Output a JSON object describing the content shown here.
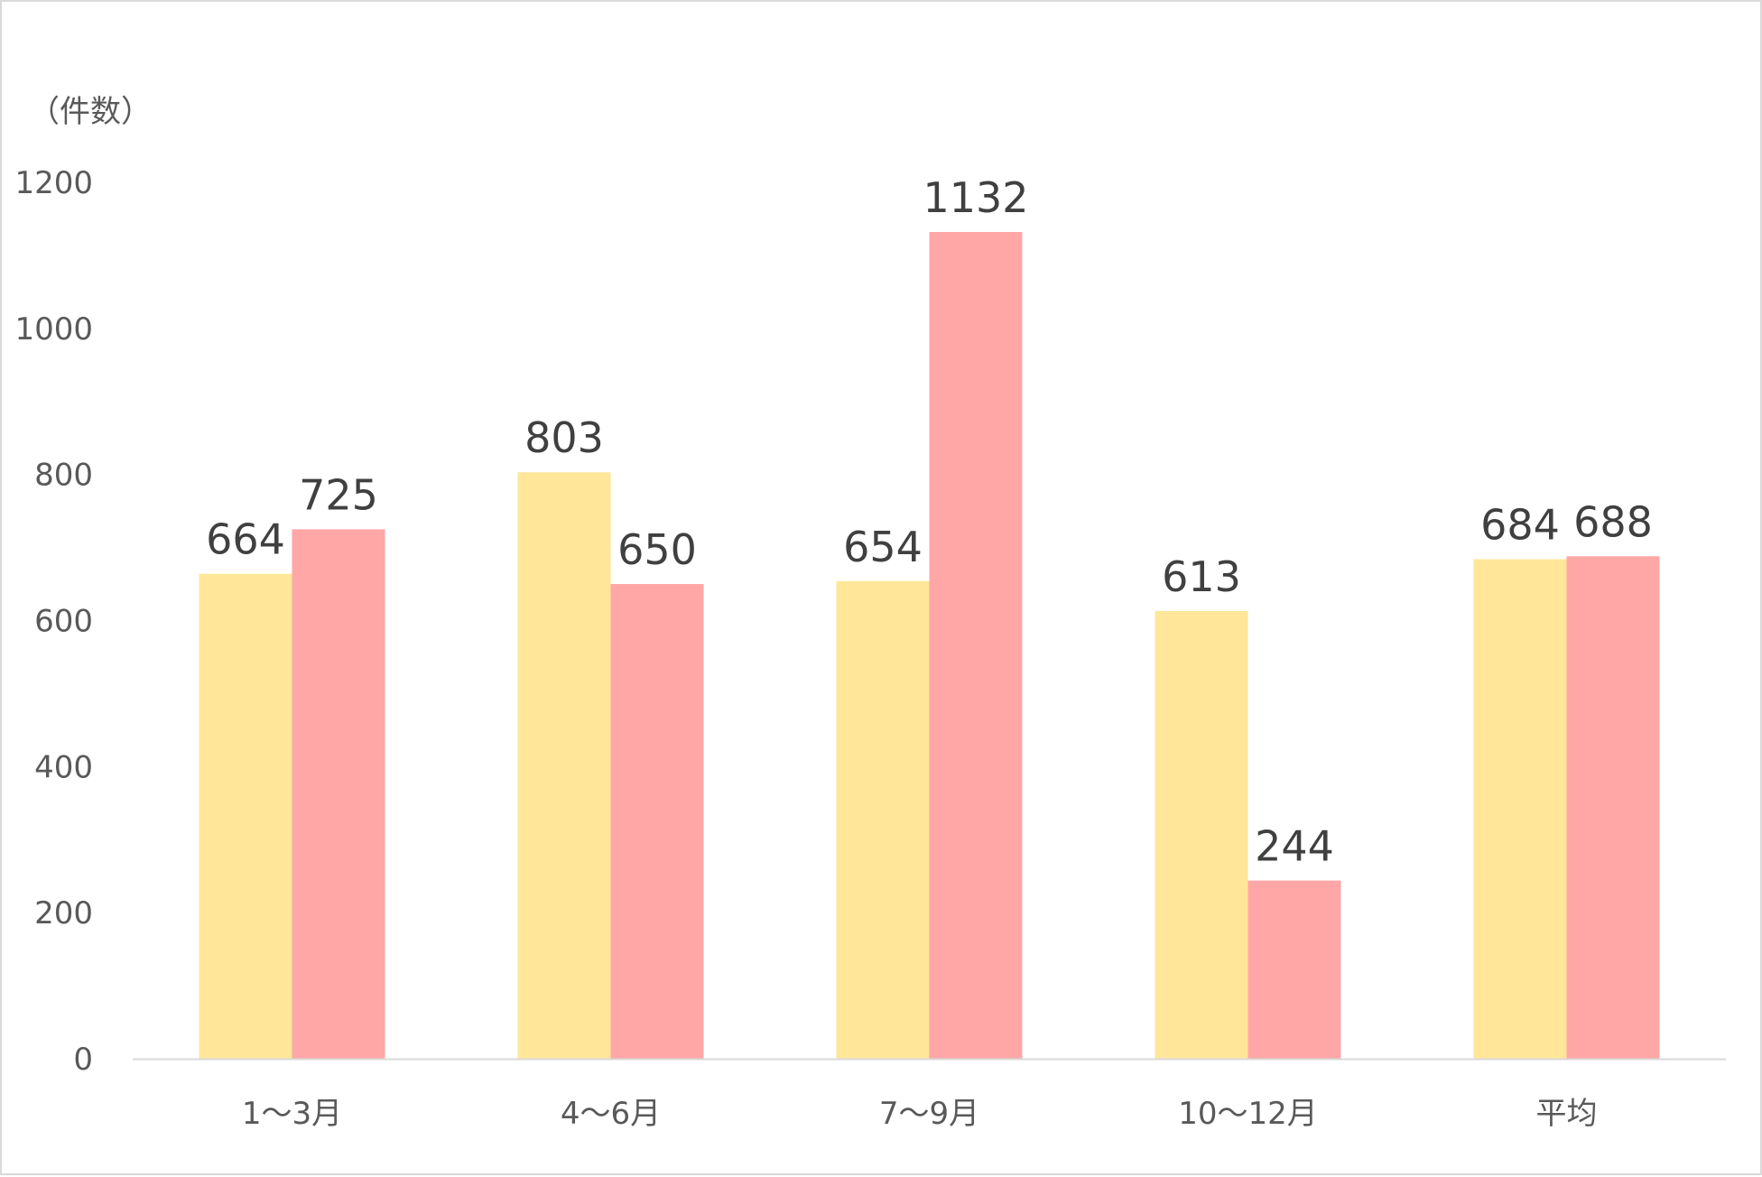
{
  "chart_data": {
    "type": "bar",
    "ylabel": "（件数）",
    "ylim": [
      0,
      1200
    ],
    "yticks": [
      0,
      200,
      400,
      600,
      800,
      1000,
      1200
    ],
    "grid": false,
    "legend": "none",
    "categories": [
      "1～3月",
      "4～6月",
      "7～9月",
      "10～12月",
      "平均"
    ],
    "series": [
      {
        "values": [
          664,
          803,
          654,
          613,
          684
        ],
        "color": "#FFE699"
      },
      {
        "values": [
          725,
          650,
          1132,
          244,
          688
        ],
        "color": "#FFA7A7"
      }
    ],
    "axis_color": "#d9d9d9"
  }
}
